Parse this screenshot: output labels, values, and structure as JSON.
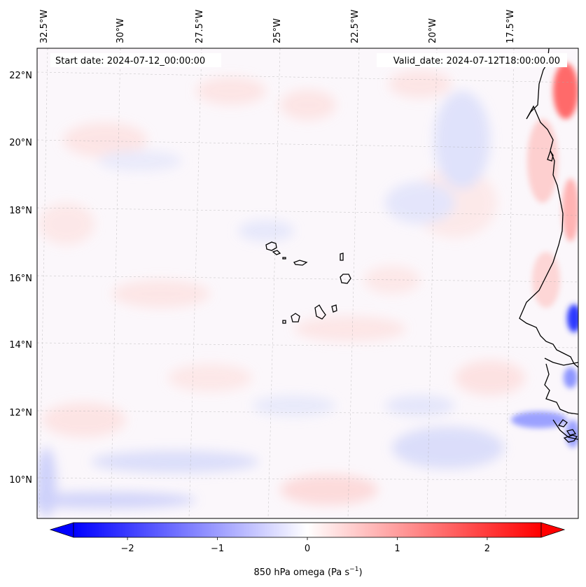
{
  "map": {
    "header": {
      "start_date": "Start date: 2024-07-12_00:00:00",
      "valid_date": "Valid_date: 2024-07-12T18:00:00.00"
    },
    "lon_labels": [
      "32.5°W",
      "30°W",
      "27.5°W",
      "25°W",
      "22.5°W",
      "20°W",
      "17.5°W"
    ],
    "lat_labels": [
      "22°N",
      "20°N",
      "18°N",
      "16°N",
      "14°N",
      "12°N",
      "10°N"
    ],
    "colorbar": {
      "ticks": [
        "−2",
        "−1",
        "0",
        "1",
        "2"
      ],
      "label": "850 hPa omega (Pa s",
      "label_sup": "−1",
      "label_close": ")",
      "range": [
        -2.6,
        2.6
      ],
      "colors": {
        "low": "#0000ff",
        "mid": "#ffffff",
        "high": "#ff0000"
      }
    }
  }
}
